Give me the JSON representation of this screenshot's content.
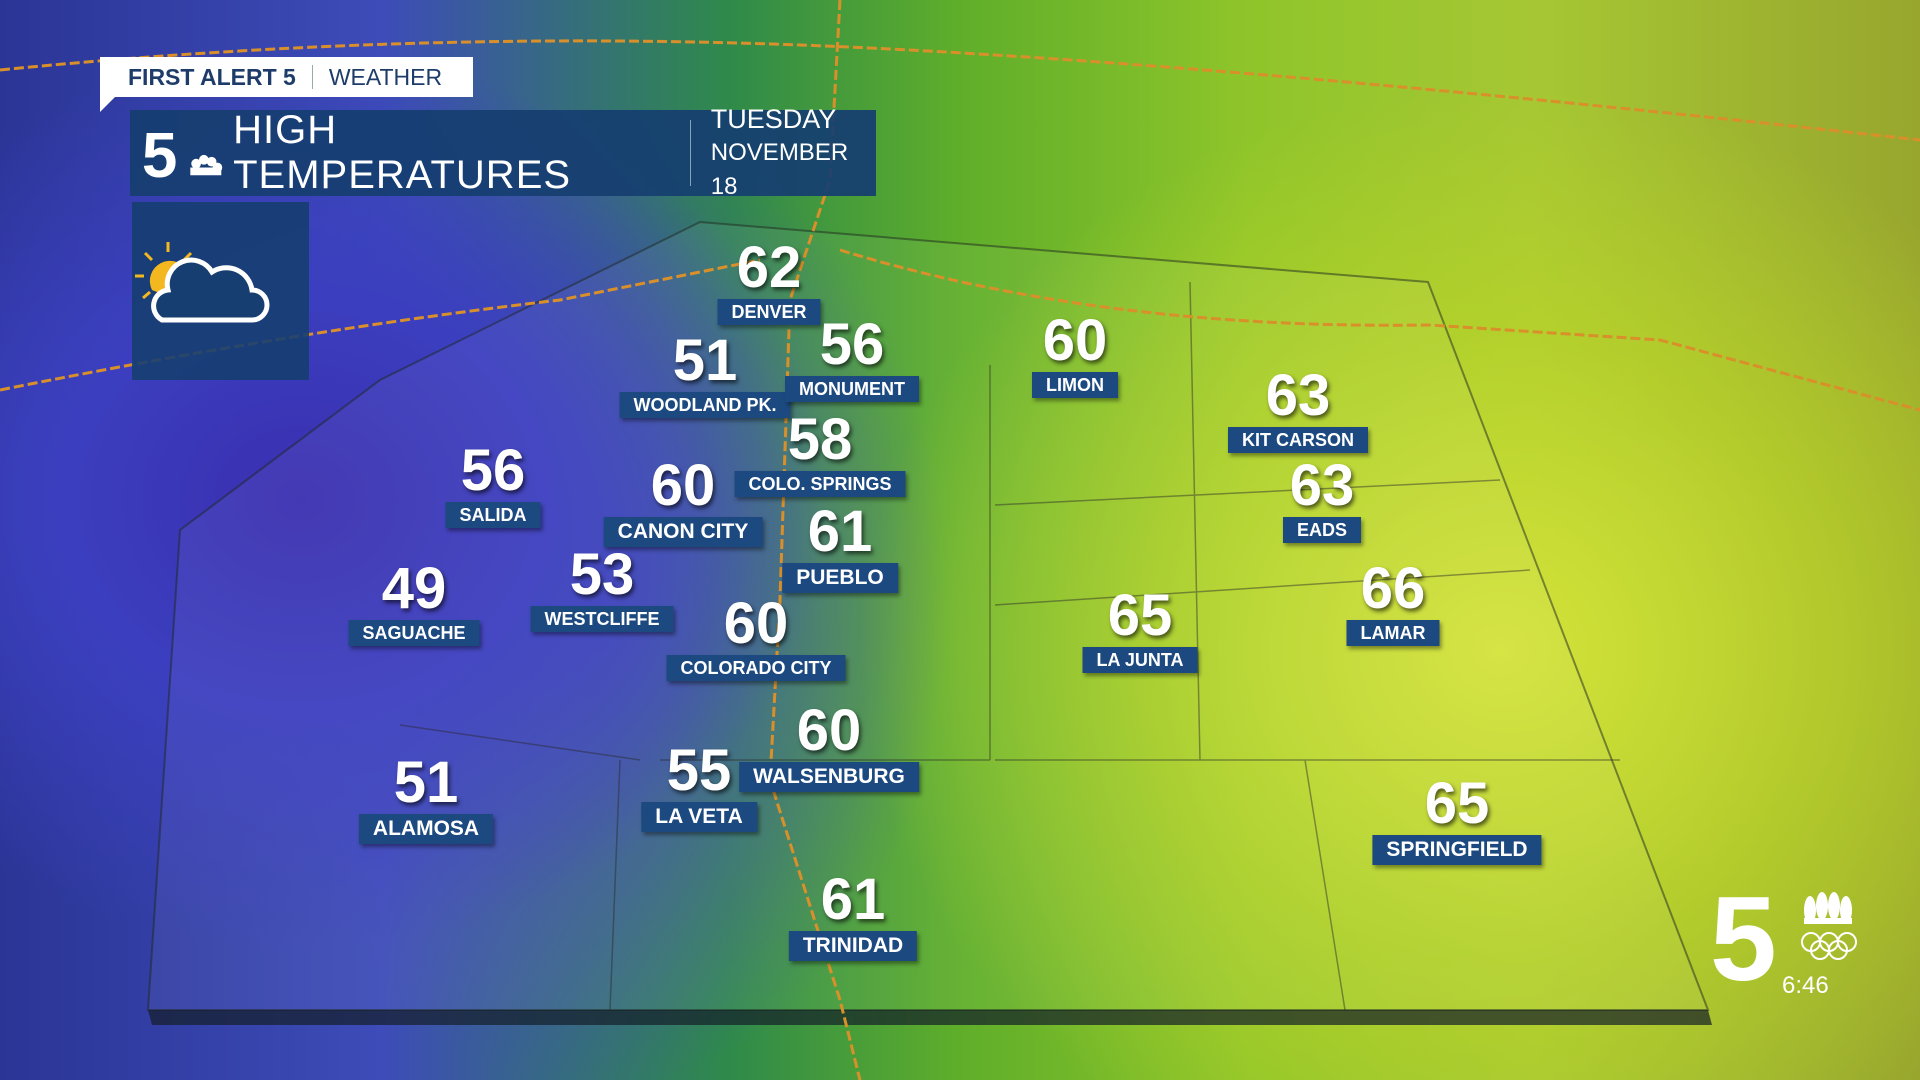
{
  "header": {
    "brand_left": "FIRST ALERT 5",
    "brand_right": "WEATHER",
    "title": "HIGH TEMPERATURES",
    "day": "TUESDAY",
    "date": "NOVEMBER 18"
  },
  "forecast_icon": "partly-cloudy-icon",
  "colors": {
    "panel": "#163e70",
    "label_bg": "#1c4a80",
    "sun": "#f3b81f"
  },
  "cities": [
    {
      "name": "DENVER",
      "temp": "62"
    },
    {
      "name": "WOODLAND PK.",
      "temp": "51"
    },
    {
      "name": "MONUMENT",
      "temp": "56"
    },
    {
      "name": "LIMON",
      "temp": "60"
    },
    {
      "name": "KIT CARSON",
      "temp": "63"
    },
    {
      "name": "COLO. SPRINGS",
      "temp": "58"
    },
    {
      "name": "SALIDA",
      "temp": "56"
    },
    {
      "name": "CANON CITY",
      "temp": "60"
    },
    {
      "name": "PUEBLO",
      "temp": "61"
    },
    {
      "name": "EADS",
      "temp": "63"
    },
    {
      "name": "SAGUACHE",
      "temp": "49"
    },
    {
      "name": "WESTCLIFFE",
      "temp": "53"
    },
    {
      "name": "COLORADO CITY",
      "temp": "60"
    },
    {
      "name": "LA JUNTA",
      "temp": "65"
    },
    {
      "name": "LAMAR",
      "temp": "66"
    },
    {
      "name": "WALSENBURG",
      "temp": "60"
    },
    {
      "name": "LA VETA",
      "temp": "55"
    },
    {
      "name": "ALAMOSA",
      "temp": "51"
    },
    {
      "name": "SPRINGFIELD",
      "temp": "65"
    },
    {
      "name": "TRINIDAD",
      "temp": "61"
    }
  ],
  "corner": {
    "time": "6:46"
  }
}
